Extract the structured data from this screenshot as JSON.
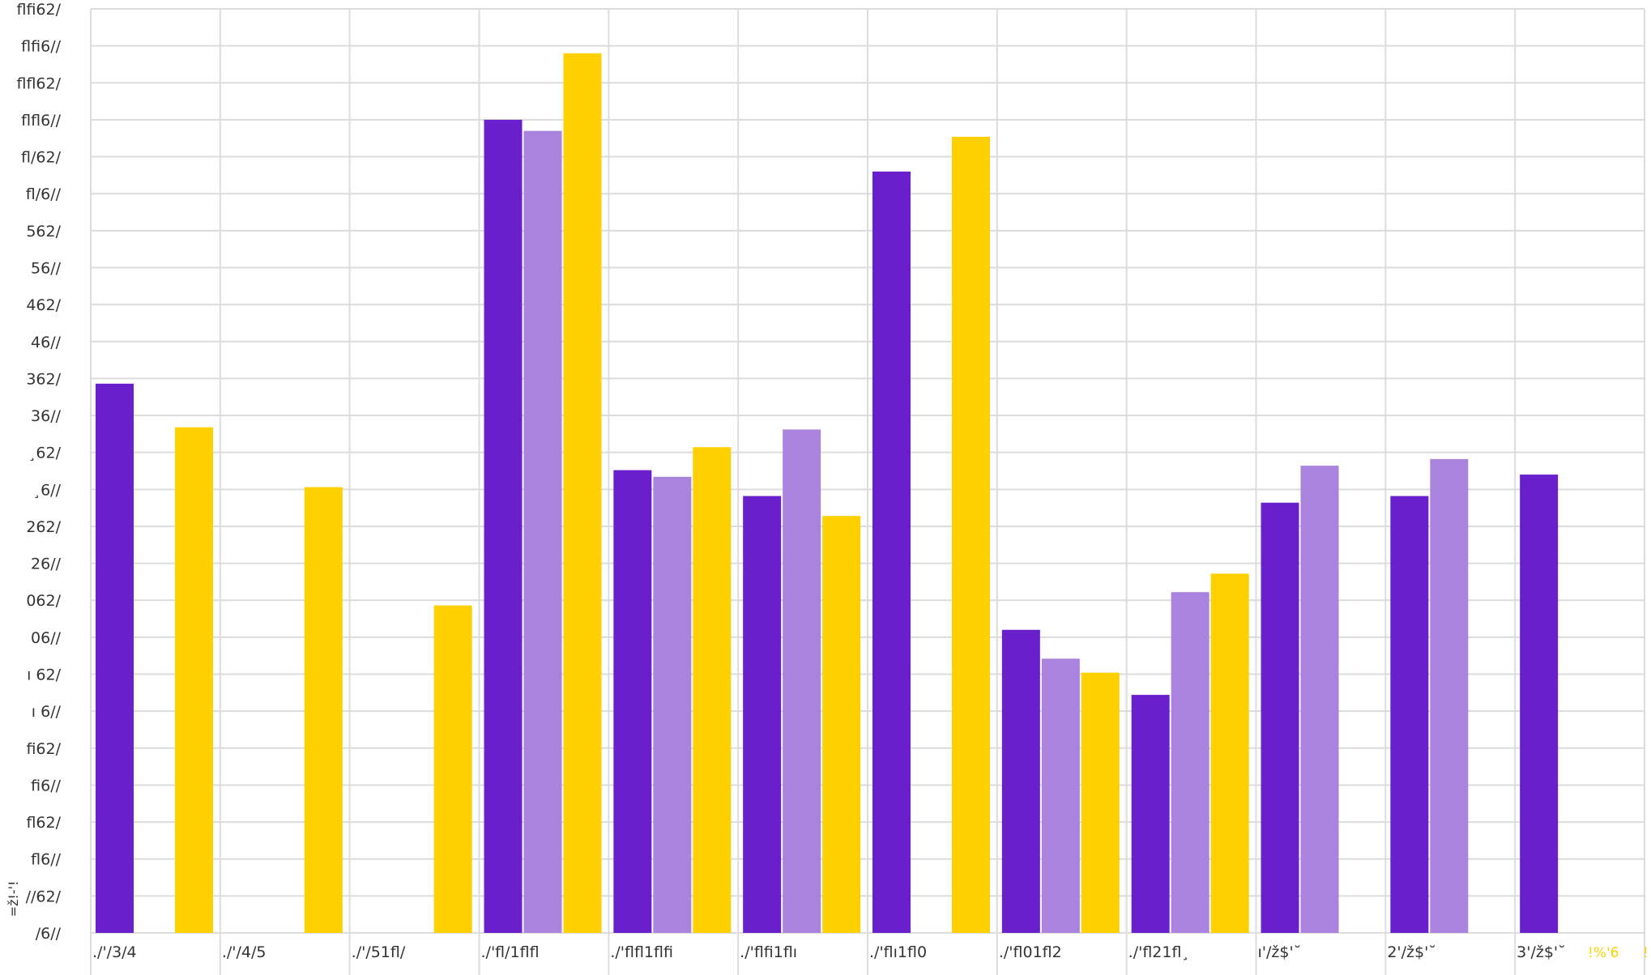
{
  "chart_data": {
    "type": "bar",
    "grid": true,
    "legend": "bottom-right",
    "ylabel": "=ž!-'!",
    "ylim": [
      0,
      1250
    ],
    "y_ticks": [
      {
        "value": 0,
        "label": "/6//"
      },
      {
        "value": 50,
        "label": "//62/"
      },
      {
        "value": 100,
        "label": "fl6//"
      },
      {
        "value": 150,
        "label": "fl62/"
      },
      {
        "value": 200,
        "label": "fi6//"
      },
      {
        "value": 250,
        "label": "fi62/"
      },
      {
        "value": 300,
        "label": "ı 6//"
      },
      {
        "value": 350,
        "label": "ı 62/"
      },
      {
        "value": 400,
        "label": "06//"
      },
      {
        "value": 450,
        "label": "062/"
      },
      {
        "value": 500,
        "label": "26//"
      },
      {
        "value": 550,
        "label": "262/"
      },
      {
        "value": 600,
        "label": "¸6//"
      },
      {
        "value": 650,
        "label": "¸62/"
      },
      {
        "value": 700,
        "label": "36//"
      },
      {
        "value": 750,
        "label": "362/"
      },
      {
        "value": 800,
        "label": "46//"
      },
      {
        "value": 850,
        "label": "462/"
      },
      {
        "value": 900,
        "label": "56//"
      },
      {
        "value": 950,
        "label": "562/"
      },
      {
        "value": 1000,
        "label": "fl/6//"
      },
      {
        "value": 1050,
        "label": "fl/62/"
      },
      {
        "value": 1100,
        "label": "flfl6//"
      },
      {
        "value": 1150,
        "label": "flfl62/"
      },
      {
        "value": 1200,
        "label": "flfi6//"
      },
      {
        "value": 1250,
        "label": "flfi62/"
      }
    ],
    "categories": [
      "./'/3/4",
      "./'/4/5",
      "./'/51fl/",
      "./'fl/1flfl",
      "./'flfl1flfi",
      "./'flfi1flı",
      "./'flı1fl0",
      "./'fl01fl2",
      "./'fl21fl¸",
      "ı'/ž$'˘",
      "2'/ž$'˘",
      "3'/ž$'˘"
    ],
    "series": [
      {
        "color": "#6a1fcc",
        "values": [
          743,
          null,
          null,
          1100,
          626,
          591,
          1030,
          410,
          322,
          582,
          591,
          620
        ]
      },
      {
        "color": "#a983de",
        "values": [
          null,
          null,
          null,
          1085,
          617,
          681,
          null,
          371,
          461,
          632,
          641,
          null
        ]
      },
      {
        "color": "#ffd000",
        "values": [
          684,
          603,
          443,
          1190,
          657,
          564,
          1077,
          352,
          486,
          null,
          null,
          null
        ]
      }
    ],
    "legend_entries": [
      {
        "label": "!%'6",
        "color": "#ffd000"
      },
      {
        "label": "!",
        "color": "#ffd000"
      }
    ]
  }
}
